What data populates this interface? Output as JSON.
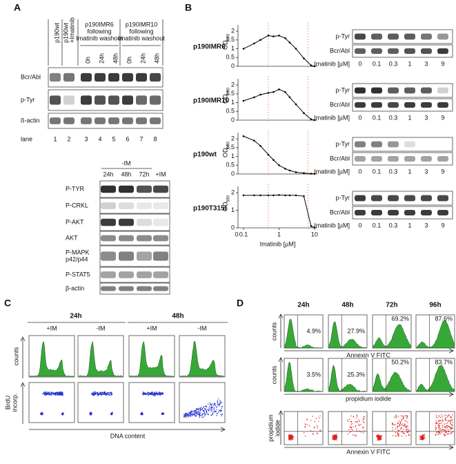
{
  "panel_a": {
    "label": "A",
    "lane_headers": [
      [
        "p190wt"
      ],
      [
        "p190wt",
        "+Imatinib"
      ]
    ],
    "groups": [
      {
        "lines": [
          "p190IMR6",
          "following",
          "Imatinib washout"
        ],
        "times": [
          "0h",
          "24h",
          "48h"
        ]
      },
      {
        "lines": [
          "p190IMR10",
          "following",
          "Imatinib washout"
        ],
        "times": [
          "0h",
          "24h",
          "48h"
        ]
      }
    ],
    "blot_rows": [
      "Bcr/Abl",
      "p-Tyr",
      "ß-actin"
    ],
    "lane_label": "lane",
    "lanes": [
      "1",
      "2",
      "3",
      "4",
      "5",
      "6",
      "7",
      "8"
    ],
    "blot2": {
      "treatment": "-IM",
      "columns": [
        "24h",
        "48h",
        "72h",
        "+IM"
      ],
      "rows": [
        [
          "P-TYR"
        ],
        [
          "P-CRKL"
        ],
        [
          "P-AKT"
        ],
        [
          "AKT"
        ],
        [
          "P-MAPK",
          "p42/p44"
        ],
        [
          "P-STAT5"
        ],
        [
          "β-actin"
        ]
      ]
    }
  },
  "panel_b": {
    "label": "B",
    "blot_rows": [
      "p-Tyr",
      "Bcr/Abl"
    ],
    "blot_lane_label": "Imatinib [µM]",
    "blot_lanes": [
      0,
      0.1,
      0.3,
      1,
      3,
      9
    ]
  },
  "chart_data": [
    {
      "type": "line",
      "title": "p190IMR6",
      "y_label": "OD",
      "y_label_sub": "590",
      "log_x": true,
      "xlim": [
        0.07,
        12
      ],
      "ylim": [
        0,
        2.2
      ],
      "yticks": [
        0,
        0.5,
        1,
        1.5,
        2
      ],
      "x": [
        0.1,
        0.2,
        0.3,
        0.5,
        0.7,
        1,
        1.5,
        2,
        3,
        5,
        8,
        10
      ],
      "values": [
        1.0,
        1.3,
        1.5,
        1.75,
        1.7,
        1.75,
        1.6,
        1.35,
        1.0,
        0.45,
        0.05,
        0.0
      ],
      "color": "#000000",
      "reference_x": [
        0.5,
        6.5
      ],
      "reference_color": "#e8a070"
    },
    {
      "type": "line",
      "title": "p190IMR10",
      "y_label": "OD",
      "y_label_sub": "590",
      "log_x": true,
      "xlim": [
        0.07,
        12
      ],
      "ylim": [
        0,
        2.2
      ],
      "yticks": [
        0,
        0.5,
        1,
        1.5,
        2
      ],
      "x": [
        0.1,
        0.2,
        0.3,
        0.5,
        0.7,
        1,
        1.5,
        2,
        3,
        5,
        8,
        10
      ],
      "values": [
        1.1,
        1.3,
        1.45,
        1.55,
        1.6,
        1.75,
        1.6,
        1.3,
        0.9,
        0.4,
        0.05,
        0.0
      ],
      "color": "#000000",
      "reference_x": [
        0.5,
        6.5
      ],
      "reference_color": "#e8a070"
    },
    {
      "type": "line",
      "title": "p190wt",
      "y_label": "OD",
      "y_label_sub": "590",
      "log_x": true,
      "xlim": [
        0.07,
        12
      ],
      "ylim": [
        0,
        2.2
      ],
      "yticks": [
        0,
        0.5,
        1,
        1.5,
        2
      ],
      "x": [
        0.1,
        0.2,
        0.3,
        0.5,
        0.7,
        1,
        1.5,
        2,
        3,
        5,
        8,
        10
      ],
      "values": [
        2.15,
        1.9,
        1.6,
        1.1,
        0.8,
        0.5,
        0.3,
        0.2,
        0.1,
        0.05,
        0.02,
        0.01
      ],
      "color": "#000000",
      "reference_x": [
        0.5,
        6.5
      ],
      "reference_color": "#e8a070"
    },
    {
      "type": "line",
      "title": "p190T315I",
      "y_label": "OD",
      "y_label_sub": "590",
      "x_label": "Imatinib [µM]",
      "x_zero_label": "0",
      "log_x": true,
      "xlim": [
        0.07,
        12
      ],
      "ylim": [
        0,
        2.2
      ],
      "yticks": [
        0,
        1,
        2
      ],
      "xticks": [
        0.1,
        1,
        10
      ],
      "x": [
        0.1,
        0.2,
        0.3,
        0.5,
        0.7,
        1,
        1.5,
        2,
        3,
        5,
        8,
        10
      ],
      "values": [
        1.85,
        1.85,
        1.85,
        1.85,
        1.85,
        1.87,
        1.85,
        1.85,
        1.85,
        1.8,
        0.1,
        0.02
      ],
      "color": "#000000",
      "reference_x": [
        0.5,
        6.5
      ],
      "reference_color": "#e8a070"
    }
  ],
  "panel_c": {
    "label": "C",
    "times": [
      "24h",
      "48h"
    ],
    "conditions": [
      "+IM",
      "-IM",
      "+IM",
      "-IM"
    ],
    "counts_label": "counts",
    "brdu_label": [
      "BrdU",
      "incorp."
    ],
    "x_label": "DNA content"
  },
  "panel_d": {
    "label": "D",
    "times": [
      "24h",
      "48h",
      "72h",
      "96h"
    ],
    "rows": [
      {
        "y_label": [
          "counts"
        ],
        "x_label": "Annexin V FITC",
        "percents": [
          "4.9%",
          "27.9%",
          "69.2%",
          "87.6%"
        ]
      },
      {
        "y_label": [
          "counts"
        ],
        "x_label": "propidium iodide",
        "percents": [
          "3.5%",
          "25.3%",
          "50.2%",
          "83.7%"
        ]
      },
      {
        "y_label": [
          "propidium",
          "iodide"
        ],
        "x_label": "Annexin V FITC"
      }
    ]
  }
}
